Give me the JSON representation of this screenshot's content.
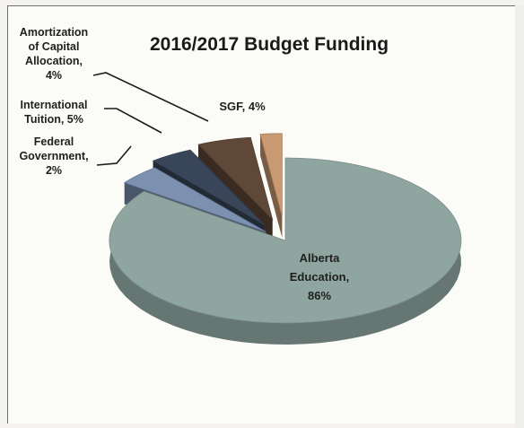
{
  "chart_data": {
    "type": "pie",
    "style": "3d-exploded",
    "title": "2016/2017 Budget Funding",
    "slices": [
      {
        "label": "Alberta Education",
        "value": 86,
        "display": [
          "Alberta",
          "Education,",
          "86%"
        ],
        "color": "#8ea5a0"
      },
      {
        "label": "SGF",
        "value": 4,
        "display": [
          "SGF, 4%"
        ],
        "color": "#7c90b0"
      },
      {
        "label": "Amortization of Capital Allocation",
        "value": 4,
        "display": [
          "Amortization",
          "of Capital",
          "Allocation,",
          "4%"
        ],
        "color": "#39465a"
      },
      {
        "label": "International Tuition",
        "value": 5,
        "display": [
          "International",
          "Tuition, 5%"
        ],
        "color": "#5f4837"
      },
      {
        "label": "Federal Government",
        "value": 2,
        "display": [
          "Federal",
          "Government,",
          "2%"
        ],
        "color": "#c99a72"
      }
    ]
  }
}
